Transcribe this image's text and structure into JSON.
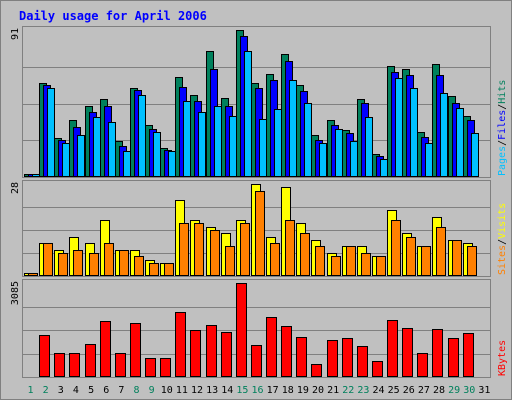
{
  "chart_data": [
    {
      "type": "bar",
      "title": "Daily usage for April 2006",
      "x": [
        "1",
        "2",
        "3",
        "4",
        "5",
        "6",
        "7",
        "8",
        "9",
        "10",
        "11",
        "12",
        "13",
        "14",
        "15",
        "16",
        "17",
        "18",
        "19",
        "20",
        "21",
        "22",
        "23",
        "24",
        "25",
        "26",
        "27",
        "28",
        "29",
        "30",
        "31"
      ],
      "weekend_days": [
        1,
        2,
        8,
        9,
        15,
        16,
        22,
        23,
        29,
        30
      ],
      "ylabel_parts": [
        "Pages",
        "Files",
        "Hits"
      ],
      "ylim": [
        0,
        91
      ],
      "max_label": "91",
      "series": [
        {
          "name": "Hits",
          "color": "#00805c",
          "values": [
            2,
            58,
            24,
            35,
            44,
            48,
            22,
            55,
            32,
            18,
            62,
            51,
            78,
            49,
            91,
            58,
            64,
            76,
            57,
            26,
            35,
            29,
            48,
            14,
            69,
            67,
            28,
            70,
            50,
            38,
            0
          ]
        },
        {
          "name": "Files",
          "color": "#0000ff",
          "values": [
            2,
            57,
            23,
            31,
            40,
            44,
            19,
            54,
            30,
            17,
            56,
            47,
            67,
            44,
            87,
            55,
            60,
            72,
            53,
            23,
            32,
            27,
            46,
            13,
            65,
            63,
            25,
            63,
            46,
            35,
            0
          ]
        },
        {
          "name": "Pages",
          "color": "#00c0ff",
          "values": [
            2,
            55,
            21,
            26,
            37,
            34,
            16,
            51,
            28,
            16,
            47,
            40,
            44,
            38,
            78,
            36,
            42,
            60,
            46,
            21,
            30,
            22,
            37,
            11,
            61,
            55,
            21,
            52,
            43,
            27,
            0
          ]
        }
      ]
    },
    {
      "type": "bar",
      "ylabel_parts": [
        "Sites",
        "Visits"
      ],
      "ylim": [
        0,
        28
      ],
      "max_label": "28",
      "series": [
        {
          "name": "Visits",
          "color": "#ffff00",
          "values": [
            1,
            10,
            8,
            12,
            10,
            17,
            8,
            8,
            5,
            4,
            23,
            17,
            15,
            13,
            17,
            28,
            12,
            27,
            16,
            11,
            7,
            9,
            9,
            6,
            20,
            13,
            9,
            18,
            11,
            10,
            0
          ]
        },
        {
          "name": "Sites",
          "color": "#ff8000",
          "values": [
            1,
            10,
            7,
            8,
            7,
            10,
            8,
            6,
            4,
            4,
            16,
            16,
            14,
            9,
            16,
            26,
            10,
            17,
            13,
            9,
            6,
            9,
            7,
            6,
            17,
            12,
            9,
            15,
            11,
            9,
            0
          ]
        }
      ]
    },
    {
      "type": "bar",
      "ylabel_parts": [
        "KBytes"
      ],
      "ylim": [
        0,
        3085
      ],
      "max_label": "3085",
      "series": [
        {
          "name": "KBytes",
          "color": "#ff0000",
          "values": [
            30,
            1376,
            777,
            777,
            1090,
            1854,
            795,
            1776,
            633,
            626,
            2146,
            1528,
            1717,
            1474,
            3085,
            1041,
            1984,
            1673,
            1325,
            431,
            1221,
            1296,
            1016,
            528,
            1868,
            1617,
            799,
            1584,
            1288,
            1452,
            0
          ]
        }
      ]
    }
  ],
  "colors": {
    "background": "#c0c0c0",
    "frame_border": "#808080",
    "panel_fill": "#c0c0c0",
    "gridline": "#808080",
    "title": "#0000ff",
    "weekday_label": "#000000",
    "weekend_label": "#00805c"
  }
}
